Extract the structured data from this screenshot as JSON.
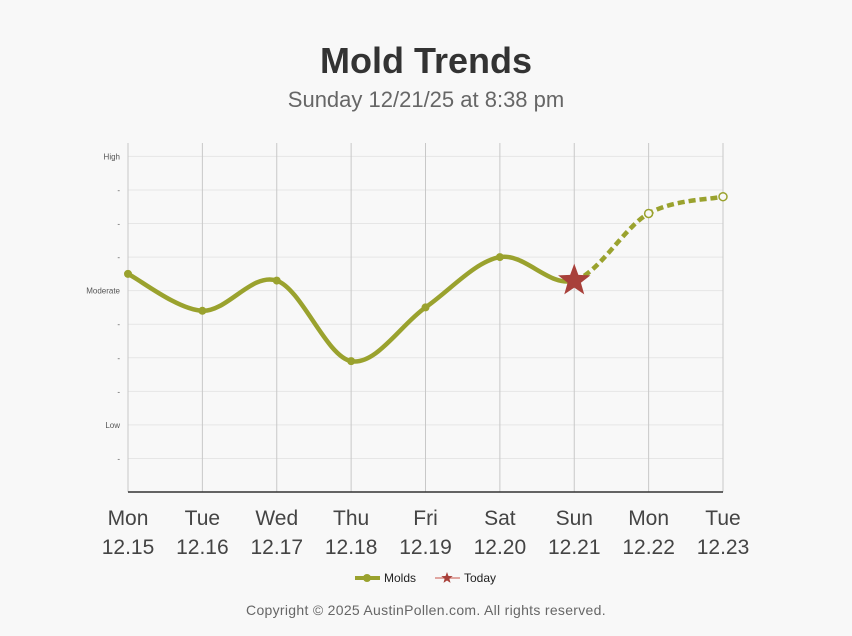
{
  "chart_data": {
    "type": "line",
    "title": "Mold Trends",
    "subtitle": "Sunday 12/21/25 at 8:38 pm",
    "categories": [
      [
        "Mon",
        "12.15"
      ],
      [
        "Tue",
        "12.16"
      ],
      [
        "Wed",
        "12.17"
      ],
      [
        "Thu",
        "12.18"
      ],
      [
        "Fri",
        "12.19"
      ],
      [
        "Sat",
        "12.20"
      ],
      [
        "Sun",
        "12.21"
      ],
      [
        "Mon",
        "12.22"
      ],
      [
        "Tue",
        "12.23"
      ]
    ],
    "y_ticks": [
      {
        "v": 10,
        "label": "High"
      },
      {
        "v": 9,
        "label": "-"
      },
      {
        "v": 8,
        "label": "-"
      },
      {
        "v": 7,
        "label": "-"
      },
      {
        "v": 6,
        "label": "Moderate"
      },
      {
        "v": 5,
        "label": "-"
      },
      {
        "v": 4,
        "label": "-"
      },
      {
        "v": 3,
        "label": "-"
      },
      {
        "v": 2,
        "label": "Low"
      },
      {
        "v": 1,
        "label": "-"
      }
    ],
    "ylim": [
      0,
      10.4
    ],
    "series": [
      {
        "name": "Molds",
        "color": "#9aa22e",
        "values": [
          6.5,
          5.4,
          6.3,
          3.9,
          5.5,
          7.0,
          6.3,
          8.3,
          8.8
        ],
        "forecast_from_index": 6
      }
    ],
    "today_index": 6,
    "today_label": "Today",
    "today_color": "#a8403a",
    "legend_position": "bottom"
  },
  "footer": "Copyright © 2025 AustinPollen.com.  All rights reserved."
}
